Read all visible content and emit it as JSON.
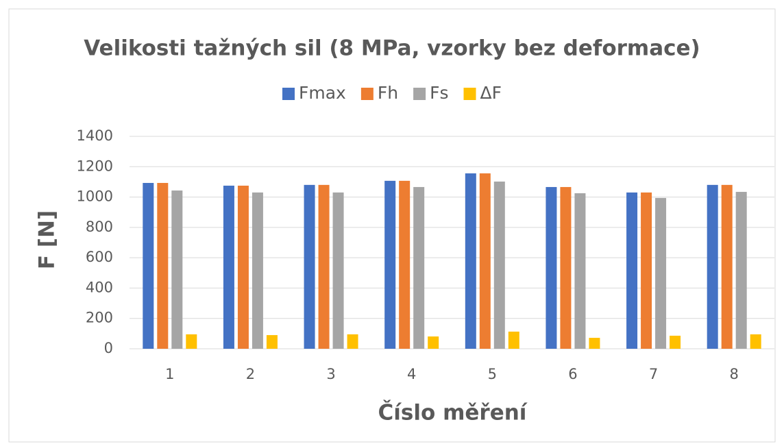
{
  "chart_data": {
    "type": "bar",
    "title": "Velikosti tažných sil (8 MPa, vzorky bez deformace)",
    "x_label": "Číslo měření",
    "y_label": "F [N]",
    "categories": [
      "1",
      "2",
      "3",
      "4",
      "5",
      "6",
      "7",
      "8"
    ],
    "series": [
      {
        "name": "Fmax",
        "color": "#4472c4",
        "values": [
          1093,
          1075,
          1080,
          1107,
          1156,
          1066,
          1030,
          1080
        ]
      },
      {
        "name": "Fh",
        "color": "#ed7d31",
        "values": [
          1093,
          1075,
          1080,
          1107,
          1156,
          1066,
          1030,
          1080
        ]
      },
      {
        "name": "Fs",
        "color": "#a5a5a5",
        "values": [
          1043,
          1030,
          1030,
          1066,
          1102,
          1025,
          994,
          1034
        ]
      },
      {
        "name": "ΔF",
        "color": "#ffc000",
        "values": [
          95,
          90,
          95,
          81,
          113,
          72,
          86,
          95
        ]
      }
    ],
    "ylim": [
      0,
      1400
    ],
    "yticks": [
      0,
      200,
      400,
      600,
      800,
      1000,
      1200,
      1400
    ],
    "grid": true,
    "legend": "top"
  }
}
